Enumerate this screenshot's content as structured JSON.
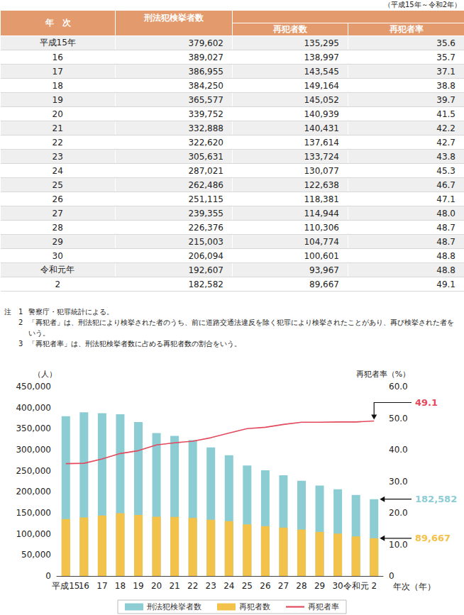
{
  "header": {
    "period": "（平成15年～令和2年）"
  },
  "table": {
    "columns": {
      "year": "年　次",
      "total": "刑法犯検挙者数",
      "repeat": "再犯者数",
      "rate": "再犯者率"
    },
    "rows": [
      [
        "平成15年",
        "379,602",
        "135,295",
        "35.6"
      ],
      [
        "16",
        "389,027",
        "138,997",
        "35.7"
      ],
      [
        "17",
        "386,955",
        "143,545",
        "37.1"
      ],
      [
        "18",
        "384,250",
        "149,164",
        "38.8"
      ],
      [
        "19",
        "365,577",
        "145,052",
        "39.7"
      ],
      [
        "20",
        "339,752",
        "140,939",
        "41.5"
      ],
      [
        "21",
        "332,888",
        "140,431",
        "42.2"
      ],
      [
        "22",
        "322,620",
        "137,614",
        "42.7"
      ],
      [
        "23",
        "305,631",
        "133,724",
        "43.8"
      ],
      [
        "24",
        "287,021",
        "130,077",
        "45.3"
      ],
      [
        "25",
        "262,486",
        "122,638",
        "46.7"
      ],
      [
        "26",
        "251,115",
        "118,381",
        "47.1"
      ],
      [
        "27",
        "239,355",
        "114,944",
        "48.0"
      ],
      [
        "28",
        "226,376",
        "110,306",
        "48.7"
      ],
      [
        "29",
        "215,003",
        "104,774",
        "48.7"
      ],
      [
        "30",
        "206,094",
        "100,601",
        "48.8"
      ],
      [
        "令和元年",
        "192,607",
        "93,967",
        "48.8"
      ],
      [
        "2",
        "182,582",
        "89,667",
        "49.1"
      ]
    ]
  },
  "notes": {
    "label": "注",
    "items": [
      {
        "number": "1",
        "text": "警察庁・犯罪統計による。"
      },
      {
        "number": "2",
        "text": "「再犯者」は、刑法犯により検挙された者のうち、前に道路交通法違反を除く犯罪により検挙されたことがあり、再び検挙された者をいう。"
      },
      {
        "number": "3",
        "text": "「再犯者率」は、刑法犯検挙者数に占める再犯者数の割合をいう。"
      }
    ]
  },
  "chart_data": {
    "type": "bar",
    "x_label": "年次（年）",
    "y_label": "（人）",
    "y2_label": "再犯者率（%）",
    "categories": [
      "平成15",
      "16",
      "17",
      "18",
      "19",
      "20",
      "21",
      "22",
      "23",
      "24",
      "25",
      "26",
      "27",
      "28",
      "29",
      "30",
      "令和元",
      "2"
    ],
    "series": [
      {
        "name": "刑法犯検挙者数",
        "type": "bar",
        "color": "#8ccdd4",
        "values": [
          379602,
          389027,
          386955,
          384250,
          365577,
          339752,
          332888,
          322620,
          305631,
          287021,
          262486,
          251115,
          239355,
          226376,
          215003,
          206094,
          192607,
          182582
        ]
      },
      {
        "name": "再犯者数",
        "type": "bar",
        "color": "#f3c24a",
        "values": [
          135295,
          138997,
          143545,
          149164,
          145052,
          140939,
          140431,
          137614,
          133724,
          130077,
          122638,
          118381,
          114944,
          110306,
          104774,
          100601,
          93967,
          89667
        ]
      },
      {
        "name": "再犯者率",
        "type": "line",
        "axis": "y2",
        "color": "#e2495c",
        "values": [
          35.6,
          35.7,
          37.1,
          38.8,
          39.7,
          41.5,
          42.2,
          42.7,
          43.8,
          45.3,
          46.7,
          47.1,
          48.0,
          48.7,
          48.7,
          48.8,
          48.8,
          49.1
        ]
      }
    ],
    "ylim": [
      0,
      450000
    ],
    "yticks": [
      0,
      {
        "value": 50000,
        "label": "50,000"
      },
      {
        "value": 100000,
        "label": "100,000"
      },
      {
        "value": 150000,
        "label": "150,000"
      },
      {
        "value": 200000,
        "label": "200,000"
      },
      {
        "value": 250000,
        "label": "250,000"
      },
      {
        "value": 300000,
        "label": "300,000"
      },
      {
        "value": 350000,
        "label": "350,000"
      },
      {
        "value": 400000,
        "label": "400,000"
      },
      {
        "value": 450000,
        "label": "450,000"
      }
    ],
    "y2lim": [
      0,
      60
    ],
    "y2ticks": [
      0,
      {
        "value": 10,
        "label": "10.0"
      },
      {
        "value": 20,
        "label": "20.0"
      },
      {
        "value": 30,
        "label": "30.0"
      },
      {
        "value": 40,
        "label": "40.0"
      },
      {
        "value": 50,
        "label": "50.0"
      },
      {
        "value": 60,
        "label": "60.0"
      }
    ],
    "annotations": [
      {
        "text": "49.1",
        "series": "再犯者率",
        "category": "2"
      },
      {
        "text": "182,582",
        "series": "刑法犯検挙者数",
        "category": "2"
      },
      {
        "text": "89,667",
        "series": "再犯者数",
        "category": "2"
      }
    ],
    "legend": "bottom",
    "grid": false
  }
}
